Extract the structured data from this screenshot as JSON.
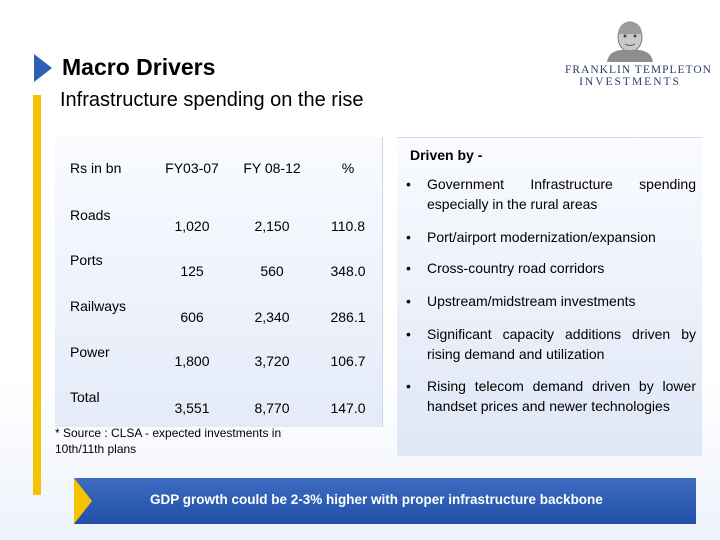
{
  "header": {
    "title": "Macro Drivers",
    "subtitle": "Infrastructure spending on the rise",
    "logo_line1": "FRANKLIN TEMPLETON",
    "logo_line2": "INVESTMENTS"
  },
  "table": {
    "headers": [
      "Rs in bn",
      "FY03-07",
      "FY 08-12",
      "%"
    ],
    "rows": [
      {
        "label": "Roads",
        "fy03_07": "1,020",
        "fy08_12": "2,150",
        "pct": "110.8"
      },
      {
        "label": "Ports",
        "fy03_07": "125",
        "fy08_12": "560",
        "pct": "348.0"
      },
      {
        "label": "Railways",
        "fy03_07": "606",
        "fy08_12": "2,340",
        "pct": "286.1"
      },
      {
        "label": "Power",
        "fy03_07": "1,800",
        "fy08_12": "3,720",
        "pct": "106.7"
      },
      {
        "label": "Total",
        "fy03_07": "3,551",
        "fy08_12": "8,770",
        "pct": "147.0"
      }
    ],
    "source_note_1": "* Source : CLSA - expected investments in",
    "source_note_2": "10th/11th plans"
  },
  "drivers": {
    "title": "Driven by -",
    "bullet_symbol": "•",
    "items": [
      "Government Infrastructure spending especially in the rural areas",
      "Port/airport modernization/expansion",
      "Cross-country road corridors",
      "Upstream/midstream investments",
      "Significant capacity additions driven by rising demand and utilization",
      "Rising telecom demand driven by lower handset prices and newer technologies"
    ]
  },
  "banner": {
    "text": "GDP growth could be 2-3% higher with proper infrastructure backbone"
  },
  "colors": {
    "accent_yellow": "#f5c400",
    "accent_blue": "#2f5fb0",
    "banner_blue": "#1f4fa8"
  }
}
